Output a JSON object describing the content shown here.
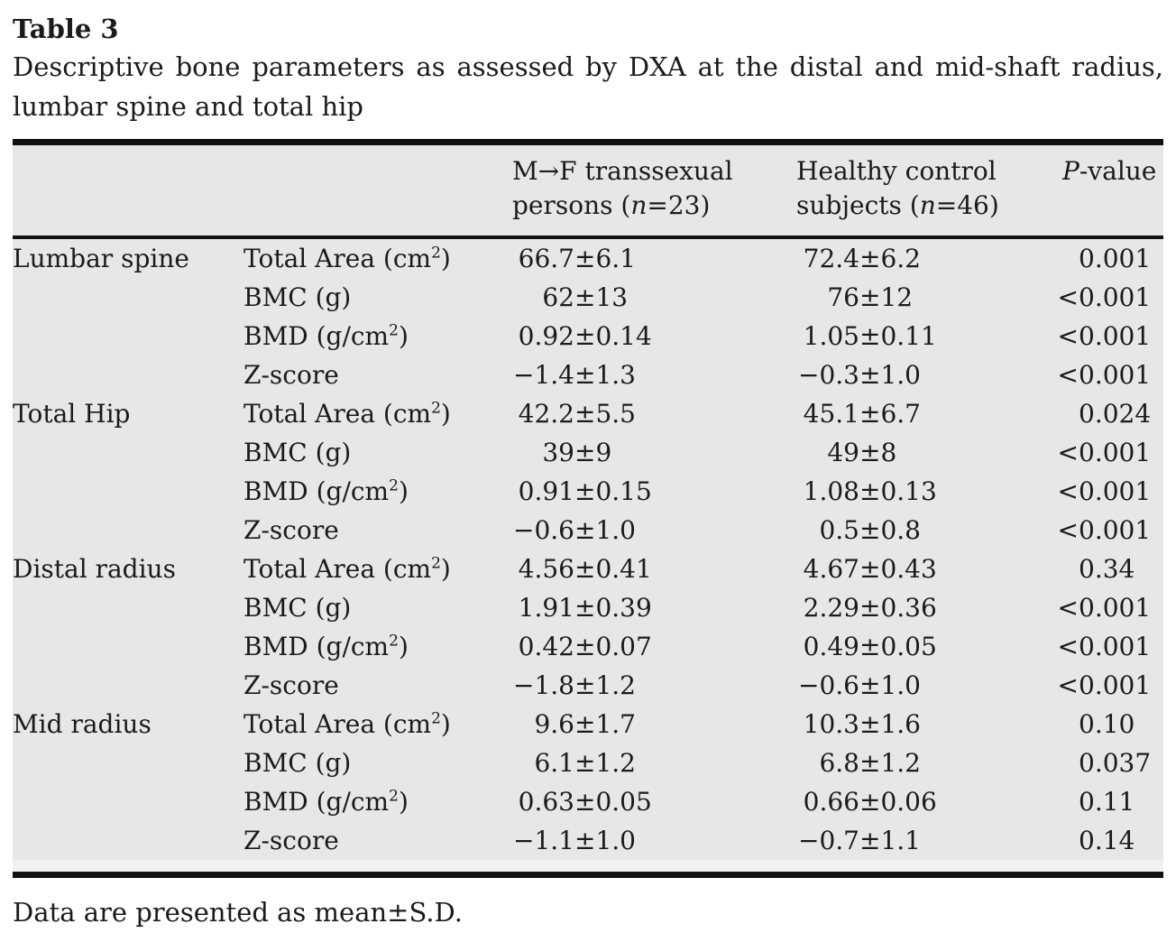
{
  "title": "Table 3",
  "caption_line1": "Descriptive bone parameters as assessed by DXA at the distal and mid-shaft radius,",
  "caption_line2": "lumbar spine and total hip",
  "symbols": {
    "pm": "±"
  },
  "colors": {
    "table_background": "#e7e7e7",
    "rule": "#111111",
    "text": "#1b1b1b"
  },
  "header": {
    "mf": {
      "line1": "M→F transsexual",
      "line2_pre": "persons (",
      "n": "n",
      "line2_post": "=23)"
    },
    "hc": {
      "line1": "Healthy control",
      "line2_pre": "subjects (",
      "n": "n",
      "line2_post": "=46)"
    },
    "p": {
      "italic": "P",
      "rest": "-value"
    }
  },
  "rows": [
    {
      "region": "Lumbar spine",
      "param_pre": "Total Area (cm",
      "param_sup": "2",
      "param_post": ")",
      "mf_mean": "66.7",
      "mf_sd": "6.1",
      "hc_mean": "72.4",
      "hc_sd": "6.2",
      "p_prefix": "",
      "p_value": "0.001"
    },
    {
      "region": "",
      "param_pre": "BMC (g)",
      "param_sup": "",
      "param_post": "",
      "mf_mean": "62",
      "mf_sd": "13",
      "hc_mean": "76",
      "hc_sd": "12",
      "p_prefix": "<",
      "p_value": "0.001"
    },
    {
      "region": "",
      "param_pre": "BMD (g/cm",
      "param_sup": "2",
      "param_post": ")",
      "mf_mean": "0.92",
      "mf_sd": "0.14",
      "hc_mean": "1.05",
      "hc_sd": "0.11",
      "p_prefix": "<",
      "p_value": "0.001"
    },
    {
      "region": "",
      "param_pre": "Z-score",
      "param_sup": "",
      "param_post": "",
      "mf_mean": "−1.4",
      "mf_sd": "1.3",
      "hc_mean": "−0.3",
      "hc_sd": "1.0",
      "p_prefix": "<",
      "p_value": "0.001"
    },
    {
      "region": "Total Hip",
      "param_pre": "Total Area (cm",
      "param_sup": "2",
      "param_post": ")",
      "mf_mean": "42.2",
      "mf_sd": "5.5",
      "hc_mean": "45.1",
      "hc_sd": "6.7",
      "p_prefix": "",
      "p_value": "0.024"
    },
    {
      "region": "",
      "param_pre": "BMC (g)",
      "param_sup": "",
      "param_post": "",
      "mf_mean": "39",
      "mf_sd": "9",
      "hc_mean": "49",
      "hc_sd": "8",
      "p_prefix": "<",
      "p_value": "0.001"
    },
    {
      "region": "",
      "param_pre": "BMD (g/cm",
      "param_sup": "2",
      "param_post": ")",
      "mf_mean": "0.91",
      "mf_sd": "0.15",
      "hc_mean": "1.08",
      "hc_sd": "0.13",
      "p_prefix": "<",
      "p_value": "0.001"
    },
    {
      "region": "",
      "param_pre": "Z-score",
      "param_sup": "",
      "param_post": "",
      "mf_mean": "−0.6",
      "mf_sd": "1.0",
      "hc_mean": "0.5",
      "hc_sd": "0.8",
      "p_prefix": "<",
      "p_value": "0.001"
    },
    {
      "region": "Distal radius",
      "param_pre": "Total Area (cm",
      "param_sup": "2",
      "param_post": ")",
      "mf_mean": "4.56",
      "mf_sd": "0.41",
      "hc_mean": "4.67",
      "hc_sd": "0.43",
      "p_prefix": "",
      "p_value": "0.34"
    },
    {
      "region": "",
      "param_pre": "BMC (g)",
      "param_sup": "",
      "param_post": "",
      "mf_mean": "1.91",
      "mf_sd": "0.39",
      "hc_mean": "2.29",
      "hc_sd": "0.36",
      "p_prefix": "<",
      "p_value": "0.001"
    },
    {
      "region": "",
      "param_pre": "BMD (g/cm",
      "param_sup": "2",
      "param_post": ")",
      "mf_mean": "0.42",
      "mf_sd": "0.07",
      "hc_mean": "0.49",
      "hc_sd": "0.05",
      "p_prefix": "<",
      "p_value": "0.001"
    },
    {
      "region": "",
      "param_pre": "Z-score",
      "param_sup": "",
      "param_post": "",
      "mf_mean": "−1.8",
      "mf_sd": "1.2",
      "hc_mean": "−0.6",
      "hc_sd": "1.0",
      "p_prefix": "<",
      "p_value": "0.001"
    },
    {
      "region": "Mid radius",
      "param_pre": "Total Area (cm",
      "param_sup": "2",
      "param_post": ")",
      "mf_mean": "9.6",
      "mf_sd": "1.7",
      "hc_mean": "10.3",
      "hc_sd": "1.6",
      "p_prefix": "",
      "p_value": "0.10"
    },
    {
      "region": "",
      "param_pre": "BMC (g)",
      "param_sup": "",
      "param_post": "",
      "mf_mean": "6.1",
      "mf_sd": "1.2",
      "hc_mean": "6.8",
      "hc_sd": "1.2",
      "p_prefix": "",
      "p_value": "0.037"
    },
    {
      "region": "",
      "param_pre": "BMD (g/cm",
      "param_sup": "2",
      "param_post": ")",
      "mf_mean": "0.63",
      "mf_sd": "0.05",
      "hc_mean": "0.66",
      "hc_sd": "0.06",
      "p_prefix": "",
      "p_value": "0.11"
    },
    {
      "region": "",
      "param_pre": "Z-score",
      "param_sup": "",
      "param_post": "",
      "mf_mean": "−1.1",
      "mf_sd": "1.0",
      "hc_mean": "−0.7",
      "hc_sd": "1.1",
      "p_prefix": "",
      "p_value": "0.14"
    }
  ],
  "footnote": "Data are presented as mean±S.D."
}
